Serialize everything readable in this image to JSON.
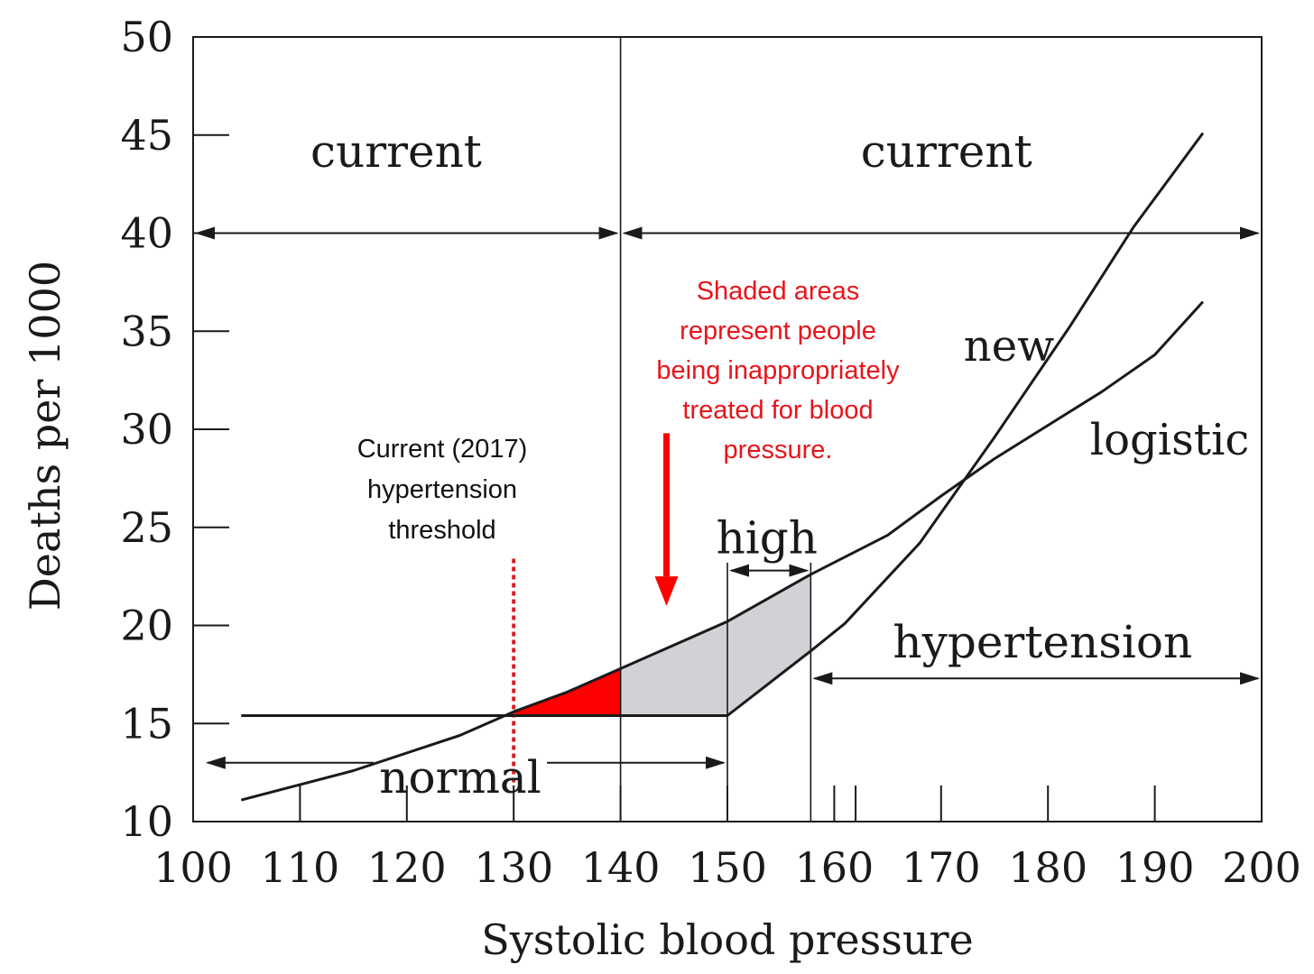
{
  "chart_data": {
    "type": "line",
    "xlabel": "Systolic blood pressure",
    "ylabel": "Deaths per 1000",
    "xlim": [
      100,
      200
    ],
    "ylim": [
      10,
      50
    ],
    "x_ticks": [
      100,
      110,
      120,
      130,
      140,
      150,
      160,
      170,
      180,
      190,
      200
    ],
    "y_ticks": [
      10,
      15,
      20,
      25,
      30,
      35,
      40,
      45,
      50
    ],
    "grid": false,
    "series": [
      {
        "name": "new",
        "points": [
          [
            104.5,
            15.4
          ],
          [
            130,
            15.4
          ],
          [
            140,
            15.4
          ],
          [
            150,
            15.4
          ],
          [
            157.8,
            18.7
          ],
          [
            161,
            20.1
          ],
          [
            168,
            24.2
          ],
          [
            175,
            29.6
          ],
          [
            182,
            35.2
          ],
          [
            188,
            40.3
          ],
          [
            194.5,
            45.1
          ]
        ]
      },
      {
        "name": "logistic",
        "points": [
          [
            104.5,
            11.1
          ],
          [
            115,
            12.6
          ],
          [
            125,
            14.4
          ],
          [
            130,
            15.6
          ],
          [
            135,
            16.6
          ],
          [
            140,
            17.8
          ],
          [
            145,
            19.0
          ],
          [
            150,
            20.2
          ],
          [
            157.8,
            22.6
          ],
          [
            165,
            24.6
          ],
          [
            170,
            26.6
          ],
          [
            175,
            28.5
          ],
          [
            180,
            30.2
          ],
          [
            185,
            31.9
          ],
          [
            190,
            33.8
          ],
          [
            194.5,
            36.5
          ]
        ]
      }
    ],
    "reference_lines": {
      "vertical_solid_full": [
        140
      ],
      "vertical_solid_partial": [
        150,
        157.8
      ],
      "vertical_dotted": 130
    },
    "shaded_regions": [
      {
        "color": "#ff0000",
        "x": [
          130,
          140
        ],
        "between": [
          "logistic",
          15.4
        ]
      },
      {
        "color": "#d0d2d5",
        "x": [
          140,
          157.8
        ],
        "between": [
          "logistic",
          "new"
        ]
      }
    ],
    "ranges": [
      {
        "label": "current",
        "from": 100,
        "to": 140,
        "y": 40
      },
      {
        "label": "current",
        "from": 140,
        "to": 200,
        "y": 40
      },
      {
        "label": "normal",
        "from": 101,
        "to": 150,
        "y": 13
      },
      {
        "label": "high",
        "from": 150,
        "to": 157.8,
        "y": 22.8
      },
      {
        "label": "hypertension",
        "from": 157.8,
        "to": 200,
        "y": 17.3
      }
    ],
    "curve_labels": {
      "new": "new",
      "logistic": "logistic"
    },
    "annotations": {
      "threshold": [
        "Current (2017)",
        "hypertension",
        "threshold"
      ],
      "shaded_note": [
        "Shaded areas",
        "represent people",
        "being inappropriately",
        "treated for blood",
        "pressure."
      ]
    },
    "colors": {
      "ink": "#1a1a1a",
      "red": "#ff0000",
      "note_red": "#e8141b",
      "gray_fill": "#d0d2d5",
      "dotted": "#d62020"
    }
  }
}
